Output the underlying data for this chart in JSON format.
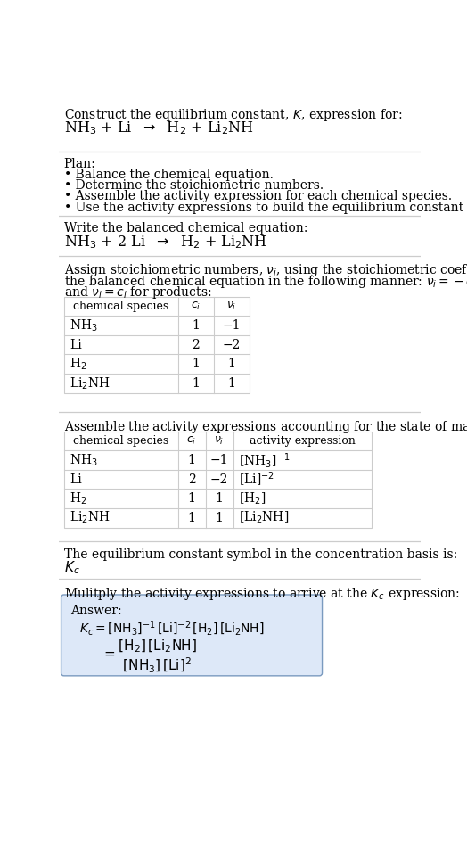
{
  "title_line1": "Construct the equilibrium constant, $K$, expression for:",
  "title_line2": "NH$_3$ + Li  $\\rightarrow$  H$_2$ + Li$_2$NH",
  "plan_header": "Plan:",
  "plan_bullets": [
    "• Balance the chemical equation.",
    "• Determine the stoichiometric numbers.",
    "• Assemble the activity expression for each chemical species.",
    "• Use the activity expressions to build the equilibrium constant expression."
  ],
  "balanced_header": "Write the balanced chemical equation:",
  "balanced_eq": "NH$_3$ + 2 Li  $\\rightarrow$  H$_2$ + Li$_2$NH",
  "stoich_line1": "Assign stoichiometric numbers, $\\nu_i$, using the stoichiometric coefficients, $c_i$, from",
  "stoich_line2": "the balanced chemical equation in the following manner: $\\nu_i = -c_i$ for reactants",
  "stoich_line3": "and $\\nu_i = c_i$ for products:",
  "table1_headers": [
    "chemical species",
    "$c_i$",
    "$\\nu_i$"
  ],
  "table1_rows": [
    [
      "NH$_3$",
      "1",
      "−1"
    ],
    [
      "Li",
      "2",
      "−2"
    ],
    [
      "H$_2$",
      "1",
      "1"
    ],
    [
      "Li$_2$NH",
      "1",
      "1"
    ]
  ],
  "assemble_intro": "Assemble the activity expressions accounting for the state of matter and $\\nu_i$:",
  "table2_headers": [
    "chemical species",
    "$c_i$",
    "$\\nu_i$",
    "activity expression"
  ],
  "table2_rows": [
    [
      "NH$_3$",
      "1",
      "−1",
      "[NH$_3$]$^{-1}$"
    ],
    [
      "Li",
      "2",
      "−2",
      "[Li]$^{-2}$"
    ],
    [
      "H$_2$",
      "1",
      "1",
      "[H$_2$]"
    ],
    [
      "Li$_2$NH",
      "1",
      "1",
      "[Li$_2$NH]"
    ]
  ],
  "kc_symbol_text": "The equilibrium constant symbol in the concentration basis is:",
  "kc_symbol": "$K_c$",
  "multiply_text": "Mulitply the activity expressions to arrive at the $K_c$ expression:",
  "answer_label": "Answer:",
  "bg_color": "#ffffff",
  "line_color": "#cccccc",
  "answer_box_color": "#dde8f8",
  "answer_box_border": "#7a9abf",
  "text_color": "#000000",
  "font_size": 10.0,
  "small_font": 9.0
}
